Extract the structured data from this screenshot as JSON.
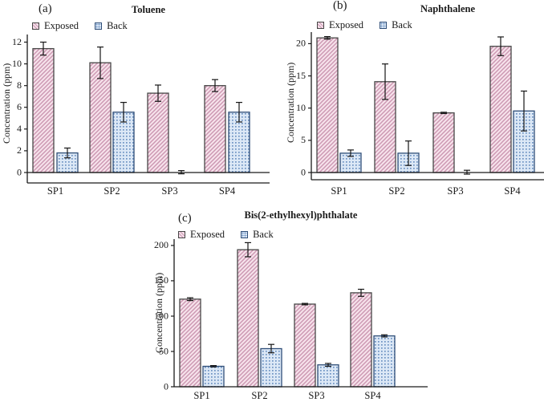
{
  "colors": {
    "exposed_fill": "#f7e3ec",
    "exposed_hatch": "#cc98b2",
    "exposed_border": "#474747",
    "back_fill": "#dce8f6",
    "back_dot": "#6d92c2",
    "back_border": "#2f4e78",
    "axis": "#1a1a1a",
    "error_bar": "#161616",
    "background": "#ffffff"
  },
  "chart_data": [
    {
      "type": "bar",
      "panel_label": "(a)",
      "title": "Toluene",
      "xlabel": "",
      "ylabel": "Concentration (ppm)",
      "categories": [
        "SP1",
        "SP2",
        "SP3",
        "SP4"
      ],
      "series": [
        {
          "name": "Exposed",
          "values": [
            11.4,
            10.1,
            7.3,
            8.0
          ],
          "errors": [
            0.6,
            1.45,
            0.75,
            0.55
          ]
        },
        {
          "name": "Back",
          "values": [
            1.8,
            5.55,
            0.03,
            5.55
          ],
          "errors": [
            0.45,
            0.9,
            0.15,
            0.9
          ]
        }
      ],
      "yticks": [
        0,
        2,
        4,
        6,
        8,
        10,
        12
      ],
      "ylim": [
        0,
        12.7
      ],
      "grid": false,
      "legend_position": "top-left"
    },
    {
      "type": "bar",
      "panel_label": "(b)",
      "title": "Naphthalene",
      "xlabel": "",
      "ylabel": "Concentration (ppm)",
      "categories": [
        "SP1",
        "SP2",
        "SP3",
        "SP4"
      ],
      "series": [
        {
          "name": "Exposed",
          "values": [
            20.9,
            14.1,
            9.25,
            19.6
          ],
          "errors": [
            0.2,
            2.75,
            0.1,
            1.45
          ]
        },
        {
          "name": "Back",
          "values": [
            3.0,
            3.0,
            0.05,
            9.55
          ],
          "errors": [
            0.5,
            1.9,
            0.3,
            3.1
          ]
        }
      ],
      "yticks": [
        0,
        5,
        10,
        15,
        20
      ],
      "ylim": [
        0,
        21.8
      ],
      "grid": false,
      "legend_position": "top-left"
    },
    {
      "type": "bar",
      "panel_label": "(c)",
      "title": "Bis(2-ethylhexyl)phthalate",
      "xlabel": "",
      "ylabel": "Concentration (ppm)",
      "categories": [
        "SP1",
        "SP2",
        "SP3",
        "SP4"
      ],
      "series": [
        {
          "name": "Exposed",
          "values": [
            124,
            194,
            117,
            133
          ],
          "errors": [
            2,
            10,
            1,
            5
          ]
        },
        {
          "name": "Back",
          "values": [
            29,
            54,
            31,
            72
          ],
          "errors": [
            1,
            6,
            2,
            1.5
          ]
        }
      ],
      "yticks": [
        0,
        50,
        100,
        150,
        200
      ],
      "ylim": [
        0,
        209
      ],
      "grid": false,
      "legend_position": "top-left"
    }
  ]
}
